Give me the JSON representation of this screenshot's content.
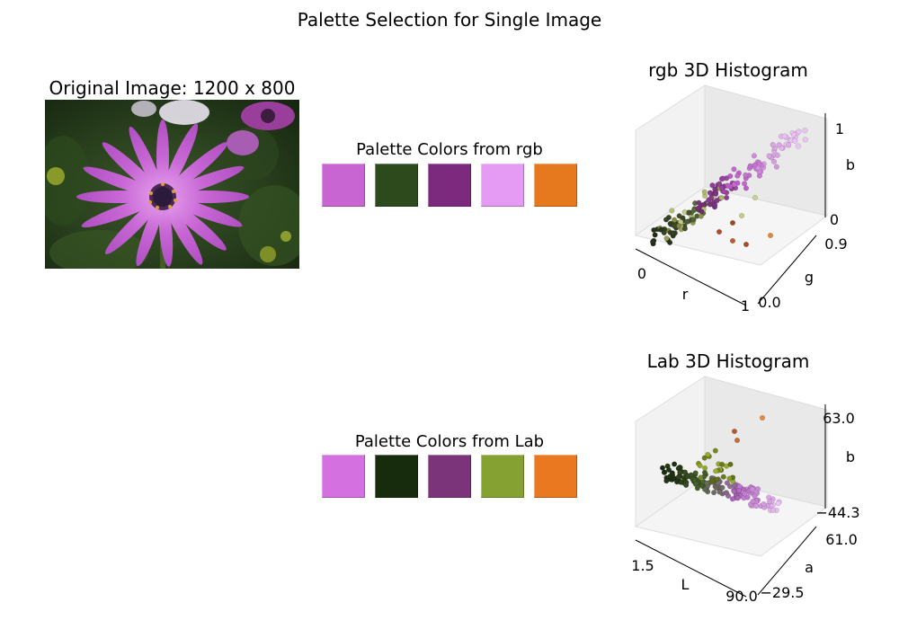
{
  "title": "Palette Selection for Single Image",
  "image_panel": {
    "title": "Original Image: 1200 x 800",
    "picture": "purple-daisy-photo"
  },
  "chart_data": [
    {
      "type": "table",
      "title": "Palette Colors from rgb",
      "colors": [
        "#c865d3",
        "#2c4a1b",
        "#7b2a7e",
        "#e59af4",
        "#e6781e"
      ]
    },
    {
      "type": "table",
      "title": "Palette Colors from Lab",
      "colors": [
        "#d470e0",
        "#172b0d",
        "#7b337a",
        "#84a131",
        "#e97820"
      ]
    },
    {
      "type": "scatter",
      "title": "rgb 3D Histogram",
      "xlabel": "r",
      "ylabel": "g",
      "zlabel": "b",
      "x_ticks": [
        "0",
        "1"
      ],
      "y_ticks": [
        "0.0",
        "0.9"
      ],
      "z_ticks": [
        "0",
        "1"
      ],
      "xlim": [
        0,
        1
      ],
      "ylim": [
        0,
        0.9
      ],
      "zlim": [
        0,
        1
      ]
    },
    {
      "type": "scatter",
      "title": "Lab 3D Histogram",
      "xlabel": "L",
      "ylabel": "a",
      "zlabel": "b",
      "x_ticks": [
        "1.5",
        "90.0"
      ],
      "y_ticks": [
        "−29.5",
        "61.0"
      ],
      "z_ticks": [
        "−44.3",
        "63.0"
      ],
      "xlim": [
        1.5,
        90.0
      ],
      "ylim": [
        -29.5,
        61.0
      ],
      "zlim": [
        -44.3,
        63.0
      ]
    }
  ]
}
